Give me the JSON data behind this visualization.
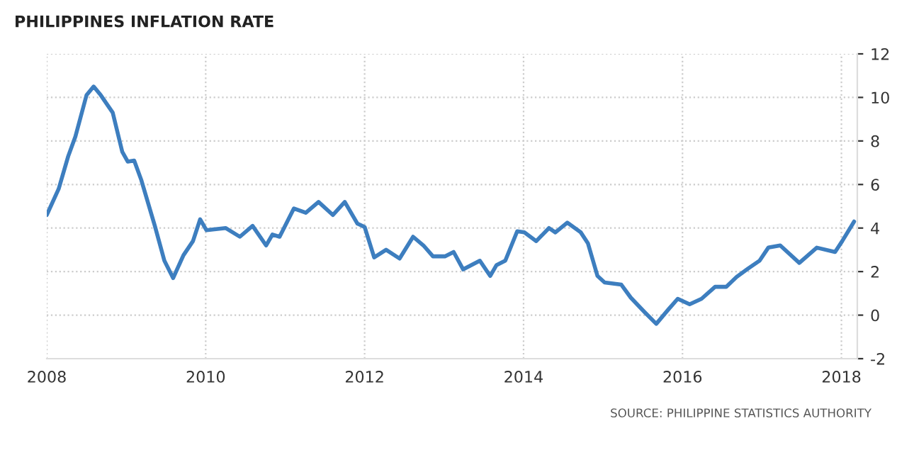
{
  "chart_data": {
    "type": "line",
    "title": "PHILIPPINES INFLATION RATE",
    "annotations": [
      "SOURCE: PHILIPPINE STATISTICS AUTHORITY"
    ],
    "series": [
      {
        "color": "#3d7ebf",
        "x": [
          2008.0,
          2008.15,
          2008.27,
          2008.36,
          2008.5,
          2008.59,
          2008.68,
          2008.83,
          2008.95,
          2009.02,
          2009.1,
          2009.19,
          2009.36,
          2009.48,
          2009.59,
          2009.72,
          2009.84,
          2009.93,
          2010.01,
          2010.25,
          2010.43,
          2010.59,
          2010.76,
          2010.84,
          2010.93,
          2011.11,
          2011.26,
          2011.42,
          2011.6,
          2011.75,
          2011.91,
          2012.0,
          2012.12,
          2012.27,
          2012.44,
          2012.61,
          2012.74,
          2012.86,
          2013.01,
          2013.12,
          2013.24,
          2013.45,
          2013.58,
          2013.66,
          2013.77,
          2013.92,
          2014.01,
          2014.16,
          2014.32,
          2014.4,
          2014.55,
          2014.72,
          2014.81,
          2014.93,
          2015.02,
          2015.23,
          2015.35,
          2015.52,
          2015.67,
          2015.82,
          2015.94,
          2016.09,
          2016.24,
          2016.41,
          2016.55,
          2016.68,
          2016.83,
          2016.97,
          2017.08,
          2017.23,
          2017.47,
          2017.69,
          2017.92,
          2018.01,
          2018.16
        ],
        "values": [
          4.6,
          5.8,
          7.3,
          8.2,
          10.1,
          10.5,
          10.1,
          9.3,
          7.5,
          7.05,
          7.1,
          6.2,
          4.1,
          2.5,
          1.7,
          2.75,
          3.4,
          4.4,
          3.9,
          4.0,
          3.6,
          4.1,
          3.2,
          3.7,
          3.6,
          4.9,
          4.7,
          5.2,
          4.6,
          5.2,
          4.2,
          4.05,
          2.65,
          3.0,
          2.6,
          3.6,
          3.2,
          2.7,
          2.7,
          2.9,
          2.1,
          2.5,
          1.8,
          2.3,
          2.5,
          3.85,
          3.8,
          3.4,
          4.0,
          3.8,
          4.25,
          3.8,
          3.3,
          1.8,
          1.5,
          1.4,
          0.8,
          0.15,
          -0.4,
          0.25,
          0.75,
          0.5,
          0.75,
          1.3,
          1.3,
          1.75,
          2.15,
          2.5,
          3.1,
          3.2,
          2.4,
          3.1,
          2.9,
          3.4,
          4.3
        ]
      }
    ],
    "xlim": [
      2008,
      2018.2
    ],
    "xticks": [
      2008,
      2010,
      2012,
      2014,
      2016,
      2018
    ],
    "ylim": [
      -2,
      12
    ],
    "yticks": [
      -2,
      0,
      2,
      4,
      6,
      8,
      10,
      12
    ],
    "grid": true,
    "legend": false,
    "marker": "none",
    "line_style": "solid"
  }
}
